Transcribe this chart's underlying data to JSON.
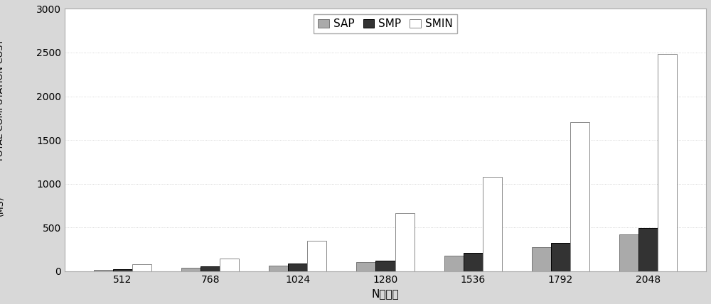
{
  "categories": [
    "512",
    "768",
    "1024",
    "1280",
    "1536",
    "1792",
    "2048"
  ],
  "SAP": [
    10,
    40,
    65,
    100,
    175,
    270,
    420
  ],
  "SMP": [
    20,
    55,
    85,
    120,
    210,
    320,
    490
  ],
  "SMIN": [
    80,
    145,
    350,
    660,
    1080,
    1700,
    2480
  ],
  "ylabel_top": "TOTAL COMPUTATION COST",
  "ylabel_bottom": "(MS)",
  "xlabel": "N的长度",
  "ylim": [
    0,
    3000
  ],
  "yticks": [
    0,
    500,
    1000,
    1500,
    2000,
    2500,
    3000
  ],
  "legend_labels": [
    "SAP",
    "SMP",
    "SMIN"
  ],
  "bar_colors": [
    "#aaaaaa",
    "#333333",
    "#ffffff"
  ],
  "bar_edgecolors": [
    "#777777",
    "#000000",
    "#888888"
  ],
  "plot_bg_color": "#ffffff",
  "fig_bg_color": "#d8d8d8",
  "grid_color": "#cccccc",
  "grid_linestyle": "dotted",
  "bar_width": 0.22,
  "tick_fontsize": 10,
  "label_fontsize": 10,
  "legend_fontsize": 11,
  "border_color": "#aaaaaa"
}
